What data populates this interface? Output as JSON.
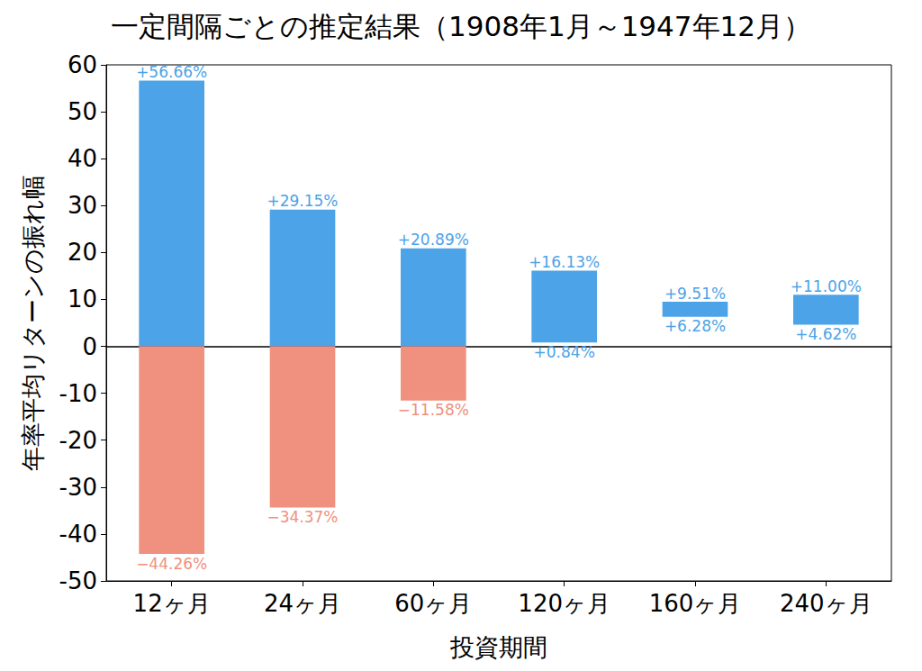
{
  "chart_data": {
    "type": "range_bar",
    "title": "一定間隔ごとの推定結果（1908年1月～1947年12月）",
    "x_label": "投資期間",
    "y_label": "年率平均リターンの振れ幅",
    "categories": [
      "12ヶ月",
      "24ヶ月",
      "60ヶ月",
      "120ヶ月",
      "160ヶ月",
      "240ヶ月"
    ],
    "series": [
      {
        "color": "#4ca3e8",
        "values": [
          56.66,
          29.15,
          20.89,
          16.13,
          9.51,
          11.0
        ],
        "value_labels": [
          "+56.66%",
          "+29.15%",
          "+20.89%",
          "+16.13%",
          "+9.51%",
          "+11.00%"
        ]
      },
      {
        "color": "#f0907e",
        "values": [
          -44.26,
          -34.37,
          -11.58,
          0.84,
          6.28,
          4.62
        ],
        "value_labels": [
          "−44.26%",
          "−34.37%",
          "−11.58%",
          "+0.84%",
          "+6.28%",
          "+4.62%"
        ]
      }
    ],
    "ylim": [
      -50,
      60
    ],
    "yticks": [
      -50,
      -40,
      -30,
      -20,
      -10,
      0,
      10,
      20,
      30,
      40,
      50,
      60
    ],
    "grid": false,
    "data_labels": true
  }
}
